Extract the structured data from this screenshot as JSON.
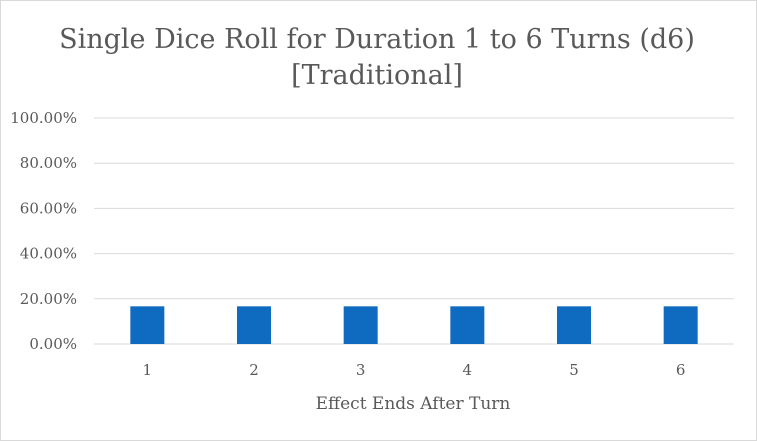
{
  "chart_data": {
    "type": "bar",
    "title_lines": [
      "Single Dice Roll for Duration 1 to 6 Turns (d6)",
      "[Traditional]"
    ],
    "xlabel": "Effect Ends After Turn",
    "ylabel": "",
    "categories": [
      "1",
      "2",
      "3",
      "4",
      "5",
      "6"
    ],
    "values": [
      0.1667,
      0.1667,
      0.1667,
      0.1667,
      0.1667,
      0.1667
    ],
    "ylim": [
      0,
      1
    ],
    "y_ticks": [
      0,
      0.2,
      0.4,
      0.6,
      0.8,
      1.0
    ],
    "y_tick_labels": [
      "0.00%",
      "20.00%",
      "40.00%",
      "60.00%",
      "80.00%",
      "100.00%"
    ],
    "bar_color": "#0f6bc0",
    "grid": true,
    "legend": "none"
  }
}
